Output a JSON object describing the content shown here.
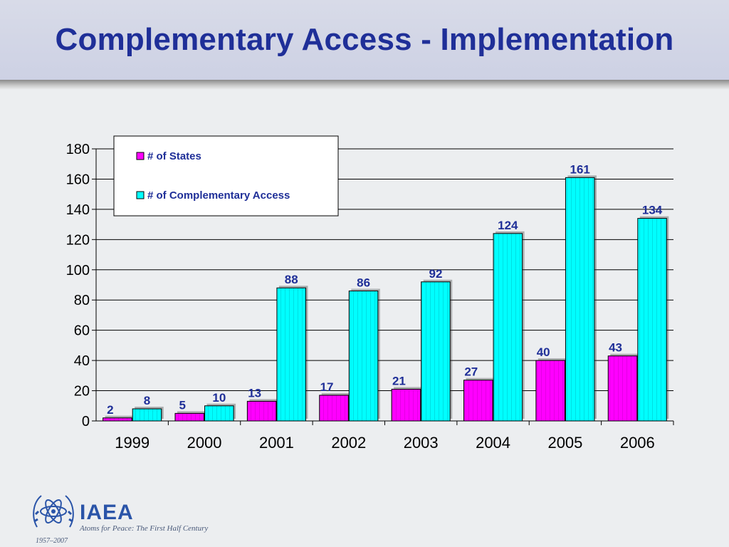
{
  "slide": {
    "title": "Complementary Access - Implementation"
  },
  "footer": {
    "brand": "IAEA",
    "tagline": "Atoms for Peace: The First Half Century",
    "years": "1957–2007",
    "logo_icon": "iaea-atom-logo-icon"
  },
  "chart_data": {
    "type": "bar",
    "title": "",
    "xlabel": "",
    "ylabel": "",
    "categories": [
      "1999",
      "2000",
      "2001",
      "2002",
      "2003",
      "2004",
      "2005",
      "2006"
    ],
    "series": [
      {
        "name": "# of States",
        "values": [
          2,
          5,
          13,
          17,
          21,
          27,
          40,
          43
        ],
        "color": "#ff00ff"
      },
      {
        "name": "# of Complementary Access",
        "values": [
          8,
          10,
          88,
          86,
          92,
          124,
          161,
          134
        ],
        "color": "#00ffff"
      }
    ],
    "ylim": [
      0,
      180
    ],
    "yticks": [
      0,
      20,
      40,
      60,
      80,
      100,
      120,
      140,
      160,
      180
    ],
    "grid": true,
    "legend": "top-left",
    "data_labels": true,
    "label_color": "#1f2f98"
  }
}
